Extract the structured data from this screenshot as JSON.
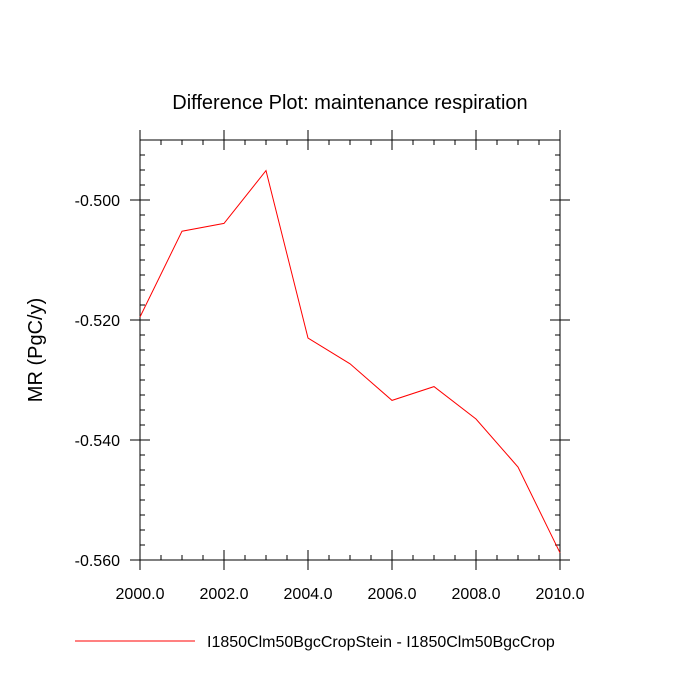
{
  "chart_data": {
    "type": "line",
    "title": "Difference Plot: maintenance respiration",
    "xlabel": "",
    "ylabel": "MR  (PgC/y)",
    "xlim": [
      2000,
      2010
    ],
    "ylim": [
      -0.56,
      -0.49
    ],
    "x_ticks": [
      2000,
      2002,
      2004,
      2006,
      2008,
      2010
    ],
    "x_tick_labels": [
      "2000.0",
      "2002.0",
      "2004.0",
      "2006.0",
      "2008.0",
      "2010.0"
    ],
    "y_ticks": [
      -0.5,
      -0.52,
      -0.54,
      -0.56
    ],
    "y_tick_labels": [
      "-0.500",
      "-0.520",
      "-0.540",
      "-0.560"
    ],
    "grid": false,
    "legend_position": "bottom",
    "series": [
      {
        "name": "I1850Clm50BgcCropStein - I1850Clm50BgcCrop",
        "color": "#ff0000",
        "x": [
          2000,
          2001,
          2002,
          2003,
          2004,
          2005,
          2006,
          2007,
          2008,
          2009,
          2010
        ],
        "y": [
          -0.5195,
          -0.5052,
          -0.5039,
          -0.4951,
          -0.523,
          -0.5273,
          -0.5334,
          -0.5311,
          -0.5365,
          -0.5445,
          -0.5588
        ]
      }
    ]
  }
}
